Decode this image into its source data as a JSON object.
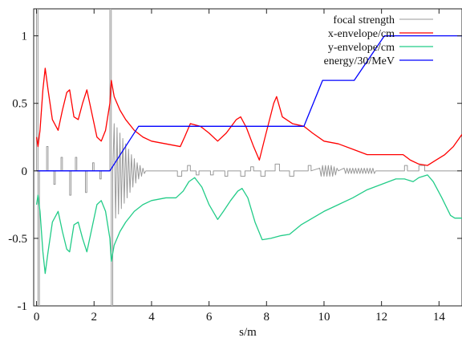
{
  "chart_data": {
    "type": "line",
    "title": "",
    "xlabel": "s/m",
    "ylabel": "",
    "xlim": [
      -0.1,
      14.8
    ],
    "ylim": [
      -1,
      1.2
    ],
    "grid": false,
    "legend_position": "top-right",
    "x_ticks": [
      0,
      2,
      4,
      6,
      8,
      10,
      12,
      14
    ],
    "x_tick_labels": [
      "0",
      "2",
      "4",
      "6",
      "8",
      "10",
      "12",
      "14"
    ],
    "y_ticks": [
      -1,
      -0.5,
      0,
      0.5,
      1
    ],
    "y_tick_labels": [
      "-1",
      "-0.5",
      "0",
      "0.5",
      "1"
    ],
    "series": [
      {
        "name": "focal strength",
        "color": "#999999",
        "points": [
          [
            -0.1,
            0
          ],
          [
            0.0,
            0
          ],
          [
            0.0,
            1.2
          ],
          [
            0.05,
            1.2
          ],
          [
            0.05,
            -1.0
          ],
          [
            0.1,
            -1.0
          ],
          [
            0.1,
            0
          ],
          [
            0.35,
            0
          ],
          [
            0.35,
            0.18
          ],
          [
            0.4,
            0.18
          ],
          [
            0.4,
            0
          ],
          [
            0.6,
            0
          ],
          [
            0.6,
            -0.1
          ],
          [
            0.65,
            -0.1
          ],
          [
            0.65,
            0
          ],
          [
            0.85,
            0
          ],
          [
            0.85,
            0.1
          ],
          [
            0.9,
            0.1
          ],
          [
            0.9,
            0
          ],
          [
            1.15,
            0
          ],
          [
            1.15,
            -0.18
          ],
          [
            1.2,
            -0.18
          ],
          [
            1.2,
            0
          ],
          [
            1.35,
            0
          ],
          [
            1.35,
            0.1
          ],
          [
            1.4,
            0.1
          ],
          [
            1.4,
            0
          ],
          [
            1.7,
            0
          ],
          [
            1.7,
            -0.16
          ],
          [
            1.75,
            -0.16
          ],
          [
            1.75,
            0
          ],
          [
            1.95,
            0
          ],
          [
            1.95,
            0.06
          ],
          [
            2.0,
            0.06
          ],
          [
            2.0,
            0
          ],
          [
            2.2,
            0
          ],
          [
            2.2,
            -0.06
          ],
          [
            2.25,
            -0.06
          ],
          [
            2.25,
            0
          ],
          [
            2.55,
            0
          ],
          [
            2.55,
            1.2
          ],
          [
            2.6,
            1.2
          ],
          [
            2.6,
            -1.0
          ],
          [
            2.65,
            -1.0
          ],
          [
            2.65,
            0
          ],
          [
            2.7,
            0.35
          ],
          [
            2.75,
            -0.35
          ],
          [
            2.8,
            0.32
          ],
          [
            2.85,
            -0.32
          ],
          [
            2.9,
            0.28
          ],
          [
            2.95,
            -0.28
          ],
          [
            3.0,
            0.24
          ],
          [
            3.05,
            -0.24
          ],
          [
            3.1,
            0.2
          ],
          [
            3.15,
            -0.2
          ],
          [
            3.2,
            0.16
          ],
          [
            3.25,
            -0.16
          ],
          [
            3.3,
            0.12
          ],
          [
            3.35,
            -0.12
          ],
          [
            3.4,
            0.09
          ],
          [
            3.45,
            -0.09
          ],
          [
            3.5,
            0.06
          ],
          [
            3.55,
            -0.06
          ],
          [
            3.6,
            0.04
          ],
          [
            3.65,
            -0.04
          ],
          [
            3.7,
            0.02
          ],
          [
            3.75,
            -0.02
          ],
          [
            3.8,
            0
          ],
          [
            4.9,
            0
          ],
          [
            4.9,
            -0.04
          ],
          [
            5.05,
            -0.04
          ],
          [
            5.05,
            0
          ],
          [
            5.25,
            0
          ],
          [
            5.25,
            0.04
          ],
          [
            5.35,
            0.04
          ],
          [
            5.35,
            0
          ],
          [
            5.55,
            0
          ],
          [
            5.55,
            -0.03
          ],
          [
            5.65,
            -0.03
          ],
          [
            5.65,
            0
          ],
          [
            6.05,
            0
          ],
          [
            6.05,
            -0.03
          ],
          [
            6.15,
            -0.03
          ],
          [
            6.15,
            0
          ],
          [
            6.55,
            0
          ],
          [
            6.55,
            -0.04
          ],
          [
            6.65,
            -0.04
          ],
          [
            6.65,
            0
          ],
          [
            7.1,
            0
          ],
          [
            7.1,
            -0.04
          ],
          [
            7.25,
            -0.04
          ],
          [
            7.25,
            0
          ],
          [
            7.45,
            0
          ],
          [
            7.45,
            0.03
          ],
          [
            7.55,
            0.03
          ],
          [
            7.55,
            0
          ],
          [
            7.8,
            0
          ],
          [
            7.8,
            -0.04
          ],
          [
            7.95,
            -0.04
          ],
          [
            7.95,
            0
          ],
          [
            8.3,
            0
          ],
          [
            8.3,
            0.05
          ],
          [
            8.45,
            0.05
          ],
          [
            8.45,
            0
          ],
          [
            8.8,
            0
          ],
          [
            8.8,
            -0.04
          ],
          [
            8.95,
            -0.04
          ],
          [
            8.95,
            0
          ],
          [
            9.45,
            0
          ],
          [
            9.45,
            0.04
          ],
          [
            9.55,
            0.04
          ],
          [
            9.55,
            0
          ],
          [
            9.85,
            0.02
          ],
          [
            9.9,
            -0.04
          ],
          [
            9.95,
            0.04
          ],
          [
            10.0,
            -0.04
          ],
          [
            10.05,
            0.04
          ],
          [
            10.1,
            -0.04
          ],
          [
            10.15,
            0.04
          ],
          [
            10.2,
            -0.04
          ],
          [
            10.25,
            0.04
          ],
          [
            10.3,
            -0.04
          ],
          [
            10.35,
            0.03
          ],
          [
            10.4,
            -0.03
          ],
          [
            10.45,
            0.02
          ],
          [
            10.5,
            0
          ],
          [
            10.7,
            0.02
          ],
          [
            10.75,
            -0.02
          ],
          [
            10.8,
            0.02
          ],
          [
            10.85,
            -0.02
          ],
          [
            10.9,
            0.02
          ],
          [
            10.95,
            -0.02
          ],
          [
            11.0,
            0.02
          ],
          [
            11.05,
            -0.02
          ],
          [
            11.1,
            0.02
          ],
          [
            11.15,
            -0.02
          ],
          [
            11.2,
            0.02
          ],
          [
            11.25,
            -0.02
          ],
          [
            11.3,
            0.02
          ],
          [
            11.35,
            -0.02
          ],
          [
            11.4,
            0.02
          ],
          [
            11.45,
            -0.02
          ],
          [
            11.5,
            0.02
          ],
          [
            11.55,
            -0.02
          ],
          [
            11.6,
            0.02
          ],
          [
            11.65,
            -0.02
          ],
          [
            11.7,
            0.02
          ],
          [
            11.75,
            -0.02
          ],
          [
            11.8,
            0
          ],
          [
            12.8,
            0
          ],
          [
            12.8,
            0.04
          ],
          [
            12.9,
            0.04
          ],
          [
            12.9,
            0
          ],
          [
            13.3,
            0
          ],
          [
            13.3,
            0.04
          ],
          [
            13.5,
            0.04
          ],
          [
            13.5,
            0
          ],
          [
            14.8,
            0
          ]
        ]
      },
      {
        "name": "x-envelope/cm",
        "color": "#ff0000",
        "points": [
          [
            0.0,
            0.25
          ],
          [
            0.05,
            0.18
          ],
          [
            0.12,
            0.3
          ],
          [
            0.22,
            0.6
          ],
          [
            0.3,
            0.76
          ],
          [
            0.4,
            0.6
          ],
          [
            0.55,
            0.38
          ],
          [
            0.75,
            0.3
          ],
          [
            0.9,
            0.45
          ],
          [
            1.05,
            0.58
          ],
          [
            1.15,
            0.6
          ],
          [
            1.3,
            0.4
          ],
          [
            1.45,
            0.38
          ],
          [
            1.6,
            0.5
          ],
          [
            1.75,
            0.6
          ],
          [
            1.9,
            0.45
          ],
          [
            2.1,
            0.25
          ],
          [
            2.25,
            0.22
          ],
          [
            2.4,
            0.3
          ],
          [
            2.55,
            0.5
          ],
          [
            2.6,
            0.67
          ],
          [
            2.7,
            0.55
          ],
          [
            2.9,
            0.45
          ],
          [
            3.1,
            0.38
          ],
          [
            3.4,
            0.3
          ],
          [
            3.7,
            0.25
          ],
          [
            4.0,
            0.22
          ],
          [
            4.5,
            0.2
          ],
          [
            5.0,
            0.18
          ],
          [
            5.15,
            0.25
          ],
          [
            5.35,
            0.35
          ],
          [
            5.7,
            0.33
          ],
          [
            6.0,
            0.28
          ],
          [
            6.3,
            0.22
          ],
          [
            6.6,
            0.28
          ],
          [
            6.95,
            0.38
          ],
          [
            7.1,
            0.4
          ],
          [
            7.3,
            0.32
          ],
          [
            7.55,
            0.18
          ],
          [
            7.75,
            0.08
          ],
          [
            7.95,
            0.25
          ],
          [
            8.25,
            0.5
          ],
          [
            8.35,
            0.55
          ],
          [
            8.55,
            0.4
          ],
          [
            8.9,
            0.35
          ],
          [
            9.3,
            0.33
          ],
          [
            9.6,
            0.28
          ],
          [
            10.0,
            0.22
          ],
          [
            10.5,
            0.2
          ],
          [
            11.0,
            0.16
          ],
          [
            11.5,
            0.12
          ],
          [
            12.0,
            0.12
          ],
          [
            12.5,
            0.12
          ],
          [
            12.75,
            0.12
          ],
          [
            13.0,
            0.08
          ],
          [
            13.3,
            0.05
          ],
          [
            13.6,
            0.04
          ],
          [
            13.9,
            0.08
          ],
          [
            14.2,
            0.12
          ],
          [
            14.5,
            0.18
          ],
          [
            14.8,
            0.27
          ]
        ]
      },
      {
        "name": "y-envelope/cm",
        "color": "#22cc88",
        "points": [
          [
            0.0,
            -0.25
          ],
          [
            0.05,
            -0.18
          ],
          [
            0.12,
            -0.3
          ],
          [
            0.22,
            -0.6
          ],
          [
            0.3,
            -0.76
          ],
          [
            0.4,
            -0.6
          ],
          [
            0.55,
            -0.38
          ],
          [
            0.75,
            -0.3
          ],
          [
            0.9,
            -0.45
          ],
          [
            1.05,
            -0.58
          ],
          [
            1.15,
            -0.6
          ],
          [
            1.3,
            -0.4
          ],
          [
            1.45,
            -0.38
          ],
          [
            1.6,
            -0.5
          ],
          [
            1.75,
            -0.6
          ],
          [
            1.9,
            -0.45
          ],
          [
            2.1,
            -0.25
          ],
          [
            2.25,
            -0.22
          ],
          [
            2.4,
            -0.3
          ],
          [
            2.55,
            -0.5
          ],
          [
            2.6,
            -0.67
          ],
          [
            2.7,
            -0.55
          ],
          [
            2.9,
            -0.45
          ],
          [
            3.1,
            -0.38
          ],
          [
            3.4,
            -0.3
          ],
          [
            3.7,
            -0.25
          ],
          [
            4.0,
            -0.22
          ],
          [
            4.5,
            -0.2
          ],
          [
            4.85,
            -0.2
          ],
          [
            5.1,
            -0.15
          ],
          [
            5.3,
            -0.08
          ],
          [
            5.5,
            -0.05
          ],
          [
            5.75,
            -0.12
          ],
          [
            6.0,
            -0.25
          ],
          [
            6.3,
            -0.36
          ],
          [
            6.5,
            -0.3
          ],
          [
            6.75,
            -0.22
          ],
          [
            7.0,
            -0.15
          ],
          [
            7.15,
            -0.13
          ],
          [
            7.35,
            -0.2
          ],
          [
            7.6,
            -0.38
          ],
          [
            7.85,
            -0.51
          ],
          [
            8.15,
            -0.5
          ],
          [
            8.5,
            -0.48
          ],
          [
            8.8,
            -0.47
          ],
          [
            9.2,
            -0.4
          ],
          [
            9.6,
            -0.35
          ],
          [
            10.0,
            -0.3
          ],
          [
            10.5,
            -0.25
          ],
          [
            11.0,
            -0.2
          ],
          [
            11.5,
            -0.14
          ],
          [
            12.0,
            -0.1
          ],
          [
            12.5,
            -0.06
          ],
          [
            12.8,
            -0.06
          ],
          [
            13.1,
            -0.08
          ],
          [
            13.3,
            -0.05
          ],
          [
            13.6,
            -0.03
          ],
          [
            13.8,
            -0.08
          ],
          [
            14.1,
            -0.2
          ],
          [
            14.4,
            -0.33
          ],
          [
            14.55,
            -0.35
          ],
          [
            14.8,
            -0.35
          ]
        ]
      },
      {
        "name": "energy/30/MeV",
        "color": "#0000ff",
        "points": [
          [
            0.0,
            0.0
          ],
          [
            2.55,
            0.0
          ],
          [
            3.55,
            0.33
          ],
          [
            9.3,
            0.33
          ],
          [
            9.95,
            0.67
          ],
          [
            11.05,
            0.67
          ],
          [
            12.1,
            1.0
          ],
          [
            14.8,
            1.0
          ]
        ]
      }
    ]
  }
}
